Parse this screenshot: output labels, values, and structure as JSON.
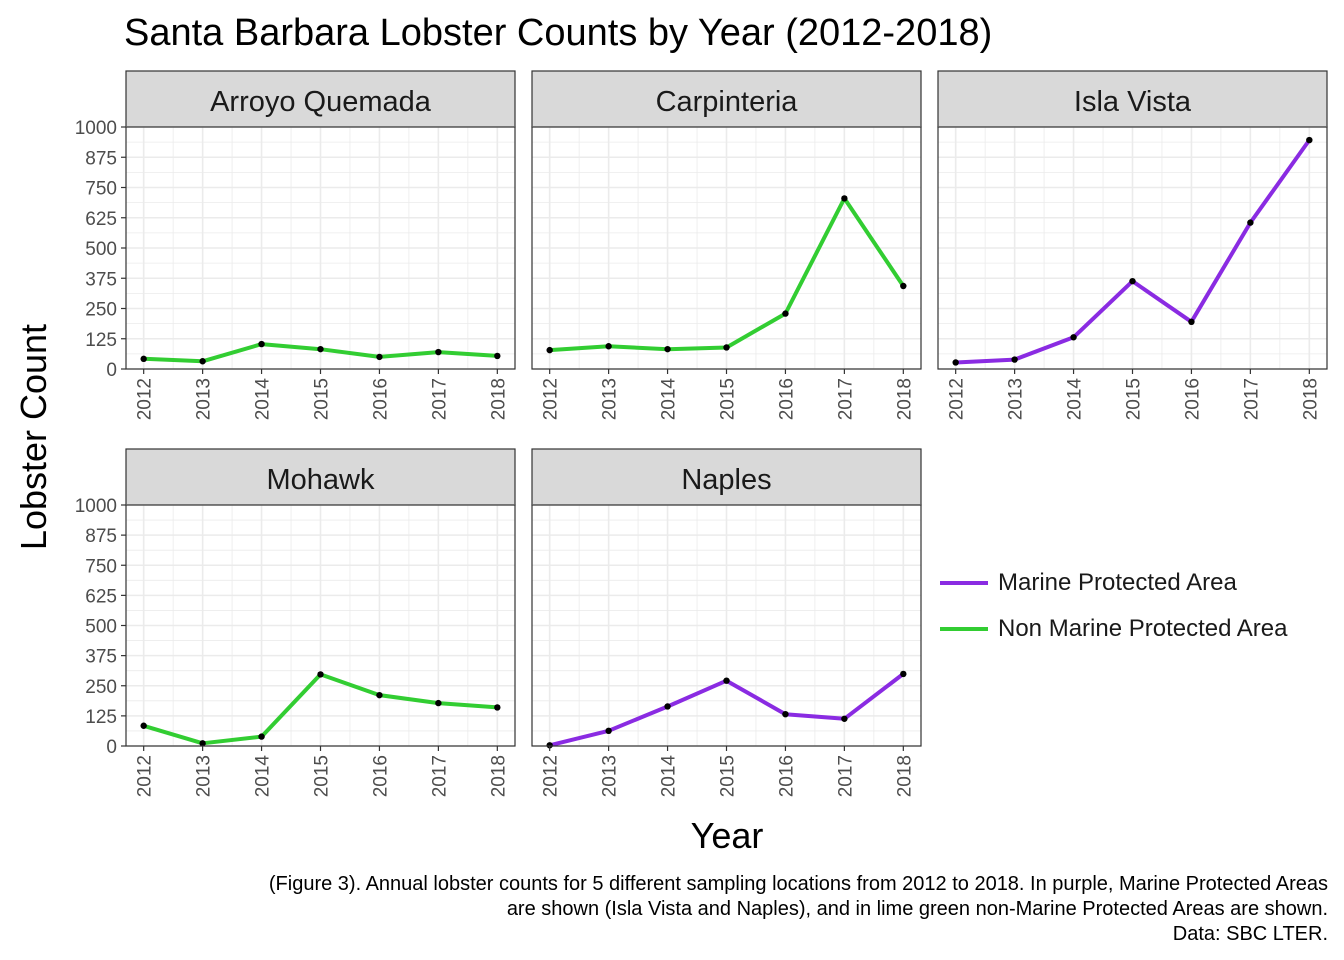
{
  "title": "Santa Barbara Lobster Counts by Year (2012-2018)",
  "caption": [
    "(Figure 3). Annual lobster counts for 5 different sampling locations from 2012 to 2018.  In purple, Marine Protected Areas",
    "are shown (Isla Vista and Naples), and in lime green non-Marine Protected Areas are shown.",
    "Data: SBC LTER."
  ],
  "colors": {
    "mpa": "#8A2BE2",
    "non_mpa": "#32CD32",
    "point": "#000000",
    "strip": "#D9D9D9",
    "grid": "#EBEBEB"
  },
  "legend": {
    "items": [
      {
        "label": "Marine Protected Area",
        "color": "#8A2BE2"
      },
      {
        "label": "Non Marine Protected Area",
        "color": "#32CD32"
      }
    ]
  },
  "chart_data": {
    "type": "line",
    "xlabel": "Year",
    "ylabel": "Lobster Count",
    "ylim": [
      0,
      1000
    ],
    "yticks": [
      0,
      125,
      250,
      375,
      500,
      625,
      750,
      875,
      1000
    ],
    "x": [
      2012,
      2013,
      2014,
      2015,
      2016,
      2017,
      2018
    ],
    "grid": true,
    "legend_position": "right",
    "facets": [
      {
        "name": "Arroyo Quemada",
        "group": "Non Marine Protected Area",
        "values": [
          42,
          32,
          103,
          82,
          50,
          70,
          54
        ]
      },
      {
        "name": "Carpinteria",
        "group": "Non Marine Protected Area",
        "values": [
          78,
          94,
          82,
          89,
          229,
          705,
          343
        ]
      },
      {
        "name": "Isla Vista",
        "group": "Marine Protected Area",
        "values": [
          27,
          39,
          131,
          363,
          195,
          605,
          946
        ]
      },
      {
        "name": "Mohawk",
        "group": "Non Marine Protected Area",
        "values": [
          84,
          11,
          39,
          297,
          211,
          178,
          160
        ]
      },
      {
        "name": "Naples",
        "group": "Marine Protected Area",
        "values": [
          3,
          63,
          164,
          271,
          132,
          113,
          299
        ]
      }
    ]
  }
}
